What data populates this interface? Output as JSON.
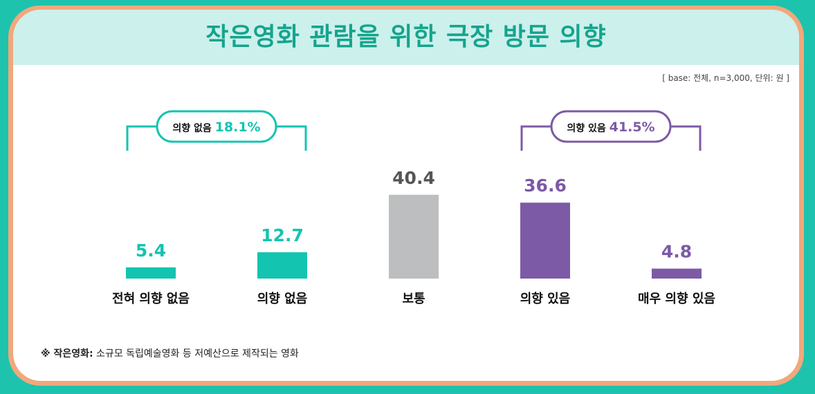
{
  "title": "작은영화 관람을 위한 극장 방문 의향",
  "base_note": "[ base: 전체, n=3,000, 단위: 원 ]",
  "footnote": {
    "label": "※ 작은영화:",
    "text": " 소규모 독립예술영화 등 저예산으로 제작되는 영화"
  },
  "colors": {
    "teal": "#13c4b1",
    "gray": "#bdbebf",
    "purple": "#7c5aa6",
    "title": "#15a48d"
  },
  "chart_data": {
    "type": "bar",
    "categories": [
      "전혀 의향 없음",
      "의향 없음",
      "보통",
      "의향 있음",
      "매우 의향 있음"
    ],
    "values": [
      5.4,
      12.7,
      40.4,
      36.6,
      4.8
    ],
    "value_labels": [
      "5.4",
      "12.7",
      "40.4",
      "36.6",
      "4.8"
    ],
    "bar_colors": [
      "teal",
      "teal",
      "gray",
      "purple",
      "purple"
    ],
    "groups": [
      {
        "label": "의향 없음",
        "value": "18.1%",
        "color": "teal",
        "categories": [
          0,
          1
        ]
      },
      {
        "label": "의향 있음",
        "value": "41.5%",
        "color": "purple",
        "categories": [
          3,
          4
        ]
      }
    ],
    "title": "작은영화 관람을 위한 극장 방문 의향",
    "xlabel": "",
    "ylabel": "",
    "ylim": [
      0,
      45
    ],
    "grid": false,
    "legend": "none"
  }
}
